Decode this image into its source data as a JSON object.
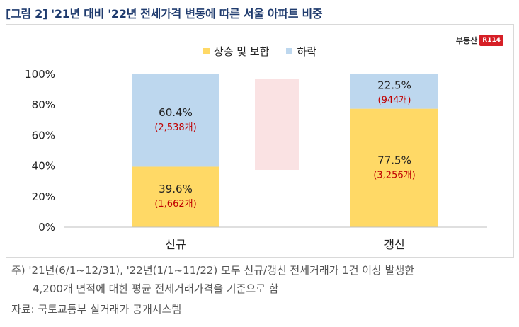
{
  "title": "[그림 2] '21년 대비 '22년 전세가격 변동에 따른 서울 아파트 비중",
  "logo": {
    "text": "부동산",
    "mark": "R114"
  },
  "colors": {
    "up": "#FFD966",
    "down": "#BDD7EE",
    "count_label": "#C00000",
    "axis": "#222222"
  },
  "chart_data": {
    "type": "bar",
    "stacked": true,
    "categories": [
      "신규",
      "갱신"
    ],
    "series": [
      {
        "name": "상승 및 보합",
        "values": [
          39.6,
          77.5
        ],
        "value_labels": [
          "39.6%",
          "77.5%"
        ],
        "count_labels": [
          "(1,662개)",
          "(3,256개)"
        ]
      },
      {
        "name": "하락",
        "values": [
          60.4,
          22.5
        ],
        "value_labels": [
          "60.4%",
          "22.5%"
        ],
        "count_labels": [
          "(2,538개)",
          "(944개)"
        ]
      }
    ],
    "yticks": [
      "0%",
      "20%",
      "40%",
      "60%",
      "80%",
      "100%"
    ],
    "ylim": [
      0,
      100
    ],
    "legend_position": "top-center",
    "grid": false
  },
  "notes": {
    "line1": "주) '21년(6/1~12/31), '22년(1/1~11/22) 모두 신규/갱신 전세거래가 1건 이상 발생한",
    "line2": "4,200개 면적에 대한 평균 전세거래가격을 기준으로 함",
    "source": "자료: 국토교통부 실거래가 공개시스템"
  }
}
